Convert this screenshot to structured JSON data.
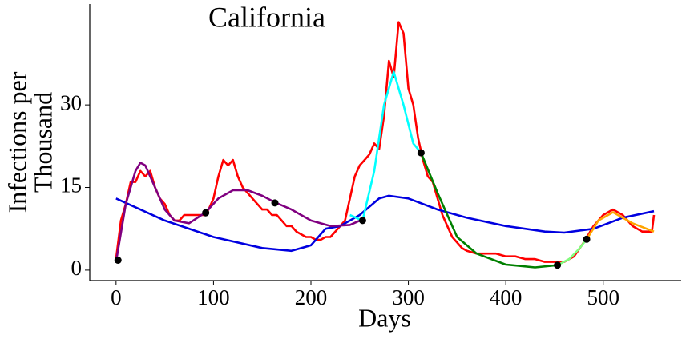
{
  "chart_data": {
    "type": "line",
    "title": "California",
    "xlabel": "Days",
    "ylabel": [
      "Infections per",
      "Thousand"
    ],
    "xlim": [
      -27,
      580
    ],
    "ylim": [
      -1.9,
      48.3
    ],
    "xticks": [
      0,
      100,
      200,
      300,
      400,
      500
    ],
    "yticks": [
      0,
      15,
      30
    ],
    "series": [
      {
        "color": "#ff0000",
        "mode": "line",
        "x": [
          0,
          5,
          10,
          15,
          20,
          25,
          30,
          35,
          40,
          45,
          50,
          55,
          60,
          65,
          70,
          75,
          80,
          85,
          90,
          95,
          100,
          105,
          110,
          115,
          120,
          125,
          130,
          135,
          140,
          145,
          150,
          155,
          160,
          165,
          170,
          175,
          180,
          185,
          190,
          195,
          200,
          205,
          210,
          215,
          220,
          225,
          230,
          235,
          240,
          245,
          250,
          255,
          260,
          265,
          270,
          275,
          280,
          285,
          290,
          295,
          300,
          305,
          310,
          315,
          320,
          325,
          330,
          335,
          340,
          345,
          350,
          355,
          360,
          370,
          380,
          390,
          400,
          410,
          420,
          430,
          440,
          450,
          460,
          470,
          480,
          490,
          500,
          510,
          520,
          530,
          540,
          550,
          552
        ],
        "values": [
          2,
          9,
          12,
          16,
          16,
          18,
          17,
          18,
          15,
          13,
          12,
          10,
          9,
          9,
          10,
          10,
          10,
          10,
          10,
          11,
          13,
          17,
          20,
          19,
          20,
          17,
          15,
          14,
          13,
          12,
          11,
          11,
          10,
          10,
          9,
          8,
          8,
          7,
          6.5,
          6,
          6,
          5.5,
          5.5,
          6,
          6,
          7,
          8,
          9,
          13,
          17,
          19,
          20,
          21,
          23,
          22,
          28,
          38,
          35,
          45,
          43,
          33,
          30,
          24,
          20,
          17,
          16,
          13,
          10,
          8,
          6,
          5,
          4,
          3.5,
          3,
          3,
          3,
          2.5,
          2.5,
          2,
          2,
          1.5,
          1.5,
          1.5,
          2.5,
          5,
          8,
          10,
          11,
          10,
          8,
          7,
          7,
          10
        ]
      },
      {
        "color": "#0000e0",
        "mode": "line",
        "x": [
          0,
          50,
          100,
          150,
          180,
          200,
          215,
          230,
          250,
          270,
          280,
          300,
          330,
          360,
          400,
          440,
          460,
          490,
          520,
          552
        ],
        "values": [
          13,
          9,
          6,
          4,
          3.5,
          4.5,
          7.5,
          8,
          10,
          13,
          13.5,
          13,
          11,
          9.5,
          8,
          7,
          6.8,
          7.5,
          9.5,
          10.7
        ]
      },
      {
        "color": "#800080",
        "mode": "line",
        "x": [
          0,
          10,
          20,
          25,
          30,
          40,
          50,
          60,
          75,
          92,
          105,
          120,
          135,
          150,
          163,
          180,
          200,
          220,
          240,
          253
        ],
        "values": [
          1.5,
          12,
          18,
          19.5,
          19,
          15,
          11,
          9,
          8.5,
          10.5,
          13,
          14.5,
          14.5,
          13.5,
          12.3,
          11,
          9,
          8,
          8.2,
          9.2
        ]
      },
      {
        "color": "#00ffff",
        "mode": "line",
        "x": [
          240,
          253,
          265,
          275,
          285,
          295,
          305,
          313
        ],
        "values": [
          10,
          9,
          18,
          30,
          36,
          30,
          23,
          21.3
        ]
      },
      {
        "color": "#008000",
        "mode": "line",
        "x": [
          313,
          330,
          350,
          370,
          400,
          430,
          453
        ],
        "values": [
          21.3,
          14,
          6,
          3,
          1,
          0.5,
          0.9
        ]
      },
      {
        "color": "#7fff7f",
        "mode": "line",
        "x": [
          453,
          465,
          475,
          483
        ],
        "values": [
          0.9,
          2,
          3.8,
          5.6
        ]
      },
      {
        "color": "#ffa500",
        "mode": "line",
        "x": [
          483,
          495,
          510,
          530,
          552
        ],
        "values": [
          5.6,
          9,
          10.5,
          8.5,
          7
        ]
      },
      {
        "color": "#000000",
        "mode": "markers",
        "x": [
          2,
          92,
          163,
          253,
          313,
          453,
          483
        ],
        "values": [
          1.8,
          10.4,
          12.2,
          9,
          21.3,
          0.9,
          5.6
        ]
      }
    ]
  }
}
